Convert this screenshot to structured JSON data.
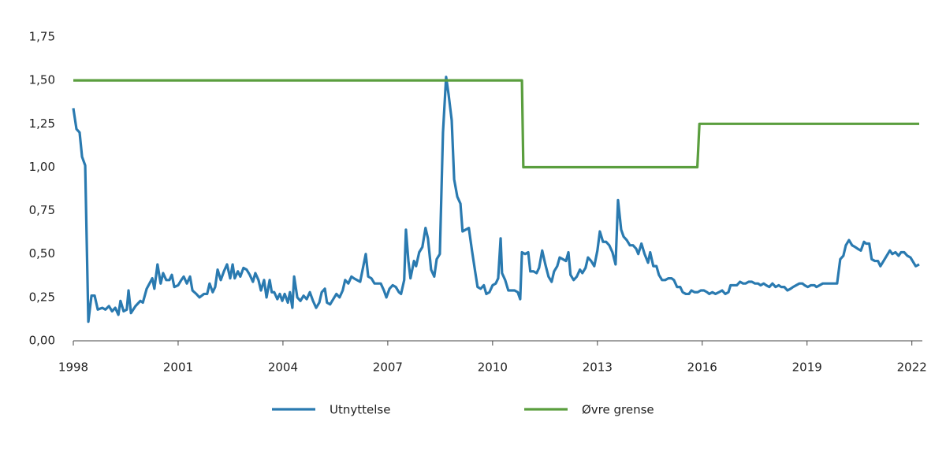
{
  "chart_data": {
    "type": "line",
    "xlim": [
      1998,
      2022.3
    ],
    "xticks": [
      1998,
      2001,
      2004,
      2007,
      2010,
      2013,
      2016,
      2019,
      2022
    ],
    "ylim": [
      0,
      1.75
    ],
    "yticks": [
      {
        "value": 0,
        "label": "0,00"
      },
      {
        "value": 0.25,
        "label": "0,25"
      },
      {
        "value": 0.5,
        "label": "0,50"
      },
      {
        "value": 0.75,
        "label": "0,75"
      },
      {
        "value": 1,
        "label": "1,00"
      },
      {
        "value": 1.25,
        "label": "1,25"
      },
      {
        "value": 1.5,
        "label": "1,50"
      },
      {
        "value": 1.75,
        "label": "1,75"
      }
    ],
    "grid": false,
    "legend": "bottom",
    "series": [
      {
        "name": "Utnyttelse",
        "color": "#2a7ab0",
        "x": [
          1998.0,
          1998.09,
          1998.18,
          1998.25,
          1998.34,
          1998.43,
          1998.52,
          1998.61,
          1998.7,
          1998.83,
          1998.92,
          1999.02,
          1999.11,
          1999.2,
          1999.29,
          1999.35,
          1999.44,
          1999.53,
          1999.58,
          1999.65,
          1999.78,
          1999.92,
          1999.99,
          2000.1,
          2000.26,
          2000.32,
          2000.41,
          2000.5,
          2000.57,
          2000.66,
          2000.75,
          2000.82,
          2000.89,
          2001.0,
          2001.09,
          2001.16,
          2001.25,
          2001.34,
          2001.41,
          2001.52,
          2001.61,
          2001.74,
          2001.83,
          2001.9,
          2001.99,
          2002.06,
          2002.13,
          2002.22,
          2002.31,
          2002.4,
          2002.49,
          2002.56,
          2002.62,
          2002.71,
          2002.78,
          2002.87,
          2002.96,
          2003.05,
          2003.14,
          2003.21,
          2003.3,
          2003.37,
          2003.46,
          2003.53,
          2003.62,
          2003.68,
          2003.75,
          2003.84,
          2003.91,
          2003.98,
          2004.05,
          2004.14,
          2004.2,
          2004.27,
          2004.32,
          2004.41,
          2004.5,
          2004.59,
          2004.68,
          2004.77,
          2004.86,
          2004.95,
          2005.04,
          2005.11,
          2005.2,
          2005.26,
          2005.35,
          2005.44,
          2005.53,
          2005.62,
          2005.71,
          2005.78,
          2005.87,
          2005.96,
          2006.03,
          2006.12,
          2006.21,
          2006.3,
          2006.37,
          2006.44,
          2006.53,
          2006.62,
          2006.71,
          2006.8,
          2006.89,
          2006.96,
          2007.05,
          2007.14,
          2007.23,
          2007.32,
          2007.38,
          2007.47,
          2007.52,
          2007.59,
          2007.65,
          2007.75,
          2007.81,
          2007.9,
          2007.99,
          2008.08,
          2008.15,
          2008.24,
          2008.33,
          2008.4,
          2008.49,
          2008.58,
          2008.67,
          2008.74,
          2008.83,
          2008.9,
          2008.99,
          2009.08,
          2009.14,
          2009.23,
          2009.32,
          2009.41,
          2009.5,
          2009.57,
          2009.66,
          2009.75,
          2009.82,
          2009.91,
          2010.0,
          2010.09,
          2010.16,
          2010.23,
          2010.27,
          2010.36,
          2010.45,
          2010.54,
          2010.63,
          2010.72,
          2010.79,
          2010.84,
          2010.93,
          2011.02,
          2011.08,
          2011.17,
          2011.26,
          2011.33,
          2011.42,
          2011.51,
          2011.6,
          2011.69,
          2011.76,
          2011.85,
          2011.92,
          2012.01,
          2012.1,
          2012.17,
          2012.23,
          2012.32,
          2012.41,
          2012.5,
          2012.57,
          2012.66,
          2012.73,
          2012.82,
          2012.91,
          2013.0,
          2013.07,
          2013.16,
          2013.25,
          2013.34,
          2013.43,
          2013.52,
          2013.59,
          2013.68,
          2013.75,
          2013.84,
          2013.93,
          2014.02,
          2014.11,
          2014.17,
          2014.26,
          2014.35,
          2014.45,
          2014.51,
          2014.6,
          2014.69,
          2014.76,
          2014.85,
          2014.94,
          2015.03,
          2015.12,
          2015.19,
          2015.28,
          2015.37,
          2015.44,
          2015.53,
          2015.62,
          2015.69,
          2015.78,
          2015.87,
          2015.96,
          2016.05,
          2016.14,
          2016.2,
          2016.29,
          2016.38,
          2016.48,
          2016.57,
          2016.66,
          2016.75,
          2016.81,
          2016.9,
          2016.99,
          2017.08,
          2017.17,
          2017.24,
          2017.33,
          2017.42,
          2017.51,
          2017.6,
          2017.67,
          2017.76,
          2017.83,
          2017.92,
          2018.01,
          2018.1,
          2018.19,
          2018.26,
          2018.35,
          2018.44,
          2018.53,
          2018.6,
          2018.69,
          2018.78,
          2018.87,
          2018.93,
          2019.02,
          2019.11,
          2019.21,
          2019.27,
          2019.36,
          2019.45,
          2019.54,
          2019.61,
          2019.7,
          2019.79,
          2019.86,
          2019.95,
          2020.04,
          2020.11,
          2020.2,
          2020.29,
          2020.38,
          2020.45,
          2020.54,
          2020.63,
          2020.69,
          2020.78,
          2020.85,
          2020.94,
          2021.03,
          2021.1,
          2021.19,
          2021.28,
          2021.37,
          2021.44,
          2021.53,
          2021.62,
          2021.69,
          2021.78,
          2021.87,
          2021.96,
          2022.02,
          2022.11,
          2022.21
        ],
        "values": [
          1.34,
          1.22,
          1.2,
          1.06,
          1.01,
          0.11,
          0.26,
          0.26,
          0.18,
          0.19,
          0.18,
          0.2,
          0.17,
          0.19,
          0.15,
          0.23,
          0.17,
          0.18,
          0.29,
          0.16,
          0.2,
          0.23,
          0.22,
          0.3,
          0.36,
          0.3,
          0.44,
          0.33,
          0.39,
          0.35,
          0.35,
          0.38,
          0.31,
          0.32,
          0.35,
          0.37,
          0.33,
          0.37,
          0.29,
          0.27,
          0.25,
          0.27,
          0.27,
          0.33,
          0.28,
          0.31,
          0.41,
          0.35,
          0.4,
          0.44,
          0.36,
          0.44,
          0.36,
          0.4,
          0.37,
          0.42,
          0.41,
          0.38,
          0.34,
          0.39,
          0.35,
          0.29,
          0.35,
          0.25,
          0.35,
          0.28,
          0.28,
          0.24,
          0.27,
          0.23,
          0.27,
          0.22,
          0.28,
          0.19,
          0.37,
          0.25,
          0.23,
          0.26,
          0.24,
          0.28,
          0.23,
          0.19,
          0.22,
          0.28,
          0.3,
          0.22,
          0.21,
          0.24,
          0.27,
          0.25,
          0.29,
          0.35,
          0.33,
          0.37,
          0.36,
          0.35,
          0.34,
          0.43,
          0.5,
          0.37,
          0.36,
          0.33,
          0.33,
          0.33,
          0.29,
          0.25,
          0.3,
          0.32,
          0.31,
          0.28,
          0.27,
          0.35,
          0.64,
          0.46,
          0.36,
          0.46,
          0.43,
          0.51,
          0.54,
          0.65,
          0.59,
          0.41,
          0.37,
          0.47,
          0.5,
          1.2,
          1.52,
          1.42,
          1.27,
          0.93,
          0.83,
          0.79,
          0.63,
          0.64,
          0.65,
          0.52,
          0.4,
          0.31,
          0.3,
          0.32,
          0.27,
          0.28,
          0.32,
          0.33,
          0.36,
          0.59,
          0.39,
          0.35,
          0.29,
          0.29,
          0.29,
          0.28,
          0.24,
          0.51,
          0.5,
          0.51,
          0.4,
          0.4,
          0.39,
          0.42,
          0.52,
          0.44,
          0.37,
          0.34,
          0.4,
          0.43,
          0.48,
          0.47,
          0.46,
          0.51,
          0.38,
          0.35,
          0.37,
          0.41,
          0.39,
          0.42,
          0.48,
          0.46,
          0.43,
          0.52,
          0.63,
          0.57,
          0.57,
          0.55,
          0.51,
          0.44,
          0.81,
          0.64,
          0.6,
          0.58,
          0.55,
          0.55,
          0.53,
          0.5,
          0.56,
          0.5,
          0.45,
          0.51,
          0.43,
          0.43,
          0.38,
          0.35,
          0.35,
          0.36,
          0.36,
          0.35,
          0.31,
          0.31,
          0.28,
          0.27,
          0.27,
          0.29,
          0.28,
          0.28,
          0.29,
          0.29,
          0.28,
          0.27,
          0.28,
          0.27,
          0.28,
          0.29,
          0.27,
          0.28,
          0.32,
          0.32,
          0.32,
          0.34,
          0.33,
          0.33,
          0.34,
          0.34,
          0.33,
          0.33,
          0.32,
          0.33,
          0.32,
          0.31,
          0.33,
          0.31,
          0.32,
          0.31,
          0.31,
          0.29,
          0.3,
          0.31,
          0.32,
          0.33,
          0.33,
          0.32,
          0.31,
          0.32,
          0.32,
          0.31,
          0.32,
          0.33,
          0.33,
          0.33,
          0.33,
          0.33,
          0.33,
          0.47,
          0.49,
          0.55,
          0.58,
          0.55,
          0.54,
          0.53,
          0.52,
          0.57,
          0.56,
          0.56,
          0.47,
          0.46,
          0.46,
          0.43,
          0.46,
          0.49,
          0.52,
          0.5,
          0.51,
          0.49,
          0.51,
          0.51,
          0.49,
          0.48,
          0.46,
          0.43,
          0.44
        ]
      },
      {
        "name": "Øvre grense",
        "color": "#5a9e3e",
        "x": [
          1998,
          2010.84,
          2010.88,
          2015.86,
          2015.92,
          2022.21
        ],
        "values": [
          1.5,
          1.5,
          1.0,
          1.0,
          1.25,
          1.25
        ]
      }
    ]
  }
}
